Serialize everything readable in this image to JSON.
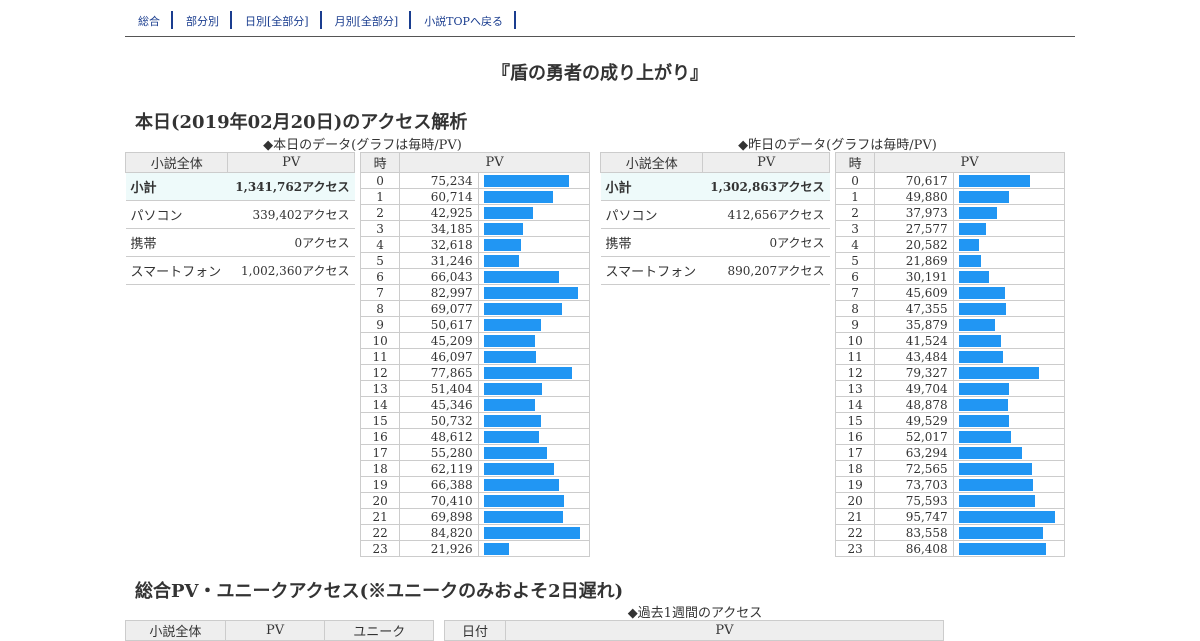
{
  "nav": {
    "items": [
      "総合",
      "部分別",
      "日別[全部分]",
      "月別[全部分]",
      "小説TOPへ戻る"
    ]
  },
  "page_title": "『盾の勇者の成り上がり』",
  "today_section": {
    "heading": "本日(2019年02月20日)のアクセス解析"
  },
  "today": {
    "caption": "◆本日のデータ(グラフは毎時/PV)",
    "summary_headers": [
      "小説全体",
      "PV"
    ],
    "summary_rows": [
      {
        "label": "小計",
        "value": "1,341,762アクセス"
      },
      {
        "label": "パソコン",
        "value": "339,402アクセス"
      },
      {
        "label": "携帯",
        "value": "0アクセス"
      },
      {
        "label": "スマートフォン",
        "value": "1,002,360アクセス"
      }
    ],
    "hourly_headers": [
      "時",
      "PV"
    ],
    "hours": [
      "0",
      "1",
      "2",
      "3",
      "4",
      "5",
      "6",
      "7",
      "8",
      "9",
      "10",
      "11",
      "12",
      "13",
      "14",
      "15",
      "16",
      "17",
      "18",
      "19",
      "20",
      "21",
      "22",
      "23"
    ],
    "pv_labels": [
      "75,234",
      "60,714",
      "42,925",
      "34,185",
      "32,618",
      "31,246",
      "66,043",
      "82,997",
      "69,077",
      "50,617",
      "45,209",
      "46,097",
      "77,865",
      "51,404",
      "45,346",
      "50,732",
      "48,612",
      "55,280",
      "62,119",
      "66,388",
      "70,410",
      "69,898",
      "84,820",
      "21,926"
    ],
    "pv": [
      75234,
      60714,
      42925,
      34185,
      32618,
      31246,
      66043,
      82997,
      69077,
      50617,
      45209,
      46097,
      77865,
      51404,
      45346,
      50732,
      48612,
      55280,
      62119,
      66388,
      70410,
      69898,
      84820,
      21926
    ]
  },
  "yesterday": {
    "caption": "◆昨日のデータ(グラフは毎時/PV)",
    "summary_headers": [
      "小説全体",
      "PV"
    ],
    "summary_rows": [
      {
        "label": "小計",
        "value": "1,302,863アクセス"
      },
      {
        "label": "パソコン",
        "value": "412,656アクセス"
      },
      {
        "label": "携帯",
        "value": "0アクセス"
      },
      {
        "label": "スマートフォン",
        "value": "890,207アクセス"
      }
    ],
    "hourly_headers": [
      "時",
      "PV"
    ],
    "hours": [
      "0",
      "1",
      "2",
      "3",
      "4",
      "5",
      "6",
      "7",
      "8",
      "9",
      "10",
      "11",
      "12",
      "13",
      "14",
      "15",
      "16",
      "17",
      "18",
      "19",
      "20",
      "21",
      "22",
      "23"
    ],
    "pv_labels": [
      "70,617",
      "49,880",
      "37,973",
      "27,577",
      "20,582",
      "21,869",
      "30,191",
      "45,609",
      "47,355",
      "35,879",
      "41,524",
      "43,484",
      "79,327",
      "49,704",
      "48,878",
      "49,529",
      "52,017",
      "63,294",
      "72,565",
      "73,703",
      "75,593",
      "95,747",
      "83,558",
      "86,408"
    ],
    "pv": [
      70617,
      49880,
      37973,
      27577,
      20582,
      21869,
      30191,
      45609,
      47355,
      35879,
      41524,
      43484,
      79327,
      49704,
      48878,
      49529,
      52017,
      63294,
      72565,
      73703,
      75593,
      95747,
      83558,
      86408
    ]
  },
  "total_section": {
    "heading": "総合PV・ユニークアクセス(※ユニークのみおよそ2日遅れ)",
    "weekly_caption": "◆過去1週間のアクセス",
    "left_headers": [
      "小説全体",
      "PV",
      "ユニーク"
    ],
    "right_headers": [
      "日付",
      "PV"
    ]
  },
  "colors": {
    "bar": "#2196f3",
    "nav": "#1a3d8f",
    "header_bg": "#eeeeee",
    "subtotal_bg": "#eefafa"
  }
}
